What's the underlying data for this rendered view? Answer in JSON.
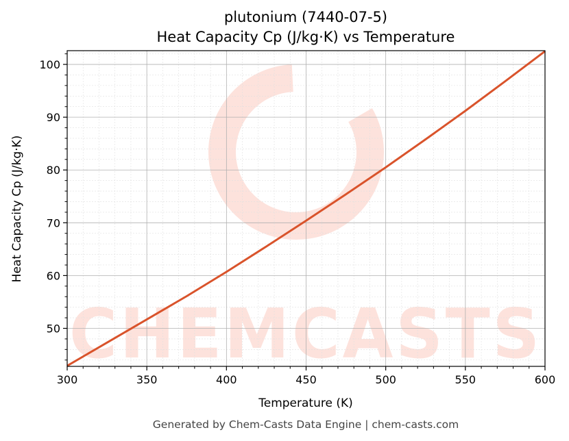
{
  "colors": {
    "line": "#d9532b",
    "watermark": "#fde2dc",
    "grid_major": "#b0b0b0",
    "grid_minor": "#e0e0e0"
  },
  "watermark": {
    "text": "CHEMCASTS"
  },
  "footer": "Generated by Chem-Casts Data Engine | chem-casts.com",
  "chart_data": {
    "type": "line",
    "title": "plutonium (7440-07-5)",
    "subtitle": "Heat Capacity Cp (J/kg·K) vs Temperature",
    "xlabel": "Temperature (K)",
    "ylabel": "Heat Capacity Cp (J/kg·K)",
    "xlim": [
      300,
      600
    ],
    "ylim": [
      42.8,
      102.6
    ],
    "xticks": [
      300,
      350,
      400,
      450,
      500,
      550,
      600
    ],
    "yticks": [
      50,
      60,
      70,
      80,
      90,
      100
    ],
    "grid": true,
    "series": [
      {
        "x": [
          300,
          325,
          350,
          375,
          400,
          425,
          450,
          475,
          500,
          525,
          550,
          575,
          600
        ],
        "values": [
          42.9,
          47.3,
          51.7,
          56.1,
          60.7,
          65.5,
          70.4,
          75.4,
          80.5,
          85.8,
          91.2,
          96.8,
          102.5
        ]
      }
    ]
  }
}
